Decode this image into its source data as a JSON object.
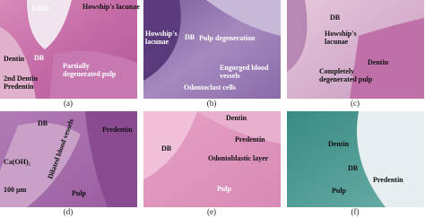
{
  "panels": [
    {
      "caption": "(a)",
      "labels": [
        [
          "EMD"
        ],
        [
          "Howship's lacunae"
        ],
        [
          "Dentin"
        ],
        [
          "DB"
        ],
        [
          "Partially",
          "degenerated pulp"
        ],
        [
          "2nd Dentin",
          "Predentin"
        ]
      ]
    },
    {
      "caption": "(b)",
      "labels": [
        [
          "Howship's",
          "lacunae"
        ],
        [
          "Pulp degeneration"
        ],
        [
          "DB"
        ],
        [
          "Engorged blood",
          "vessels"
        ],
        [
          "Odontoclast cells"
        ]
      ]
    },
    {
      "caption": "(c)",
      "labels": [
        [
          "DB"
        ],
        [
          "Howship's",
          "lacunae"
        ],
        [
          "Dentin"
        ],
        [
          "Completely",
          "degenerated pulp"
        ]
      ]
    },
    {
      "caption": "(d)",
      "labels": [
        [
          "DB"
        ],
        [
          "Predentin"
        ],
        [
          "Ca(OH)₂"
        ],
        [
          "Dilated blood vessels"
        ],
        [
          "100 µm"
        ],
        [
          "Pulp"
        ]
      ]
    },
    {
      "caption": "(e)",
      "labels": [
        [
          "Dentin"
        ],
        [
          "DB"
        ],
        [
          "Predentin"
        ],
        [
          "Odontoblastic layer"
        ],
        [
          "Pulp"
        ]
      ]
    },
    {
      "caption": "(f)",
      "labels": [
        [
          "Dentin"
        ],
        [
          "DB"
        ],
        [
          "Pulp"
        ],
        [
          "Predentin"
        ]
      ]
    }
  ]
}
